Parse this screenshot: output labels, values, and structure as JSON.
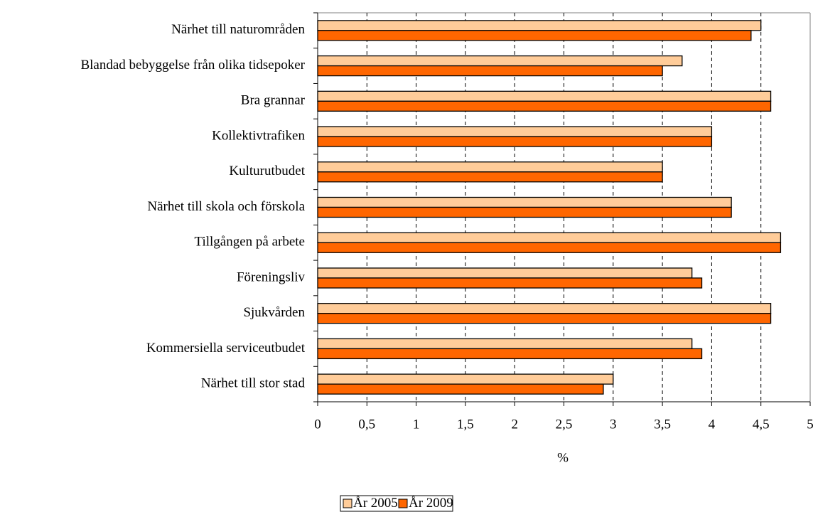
{
  "chart_data": {
    "type": "hbar",
    "categories": [
      "Närhet till naturområden",
      "Blandad bebyggelse från olika tidsepoker",
      "Bra grannar",
      "Kollektivtrafiken",
      "Kulturutbudet",
      "Närhet till skola och förskola",
      "Tillgången på arbete",
      "Föreningsliv",
      "Sjukvården",
      "Kommersiella serviceutbudet",
      "Närhet till stor stad"
    ],
    "series": [
      {
        "name": "År 2005",
        "color": "#ffcc99",
        "values": [
          4.5,
          3.7,
          4.6,
          4.0,
          3.5,
          4.2,
          4.7,
          3.8,
          4.6,
          3.8,
          3.0
        ]
      },
      {
        "name": "År 2009",
        "color": "#ff6600",
        "values": [
          4.4,
          3.5,
          4.6,
          4.0,
          3.5,
          4.2,
          4.7,
          3.9,
          4.6,
          3.9,
          2.9
        ]
      }
    ],
    "xlabel": "%",
    "xlim": [
      0,
      5
    ],
    "xticks": [
      0,
      {
        "value": 0.5,
        "label": "0,5"
      },
      1,
      {
        "value": 1.5,
        "label": "1,5"
      },
      2,
      {
        "value": 2.5,
        "label": "2,5"
      },
      3,
      {
        "value": 3.5,
        "label": "3,5"
      },
      4,
      {
        "value": 4.5,
        "label": "4,5"
      },
      5
    ],
    "grid": true,
    "legend": "bottom"
  }
}
